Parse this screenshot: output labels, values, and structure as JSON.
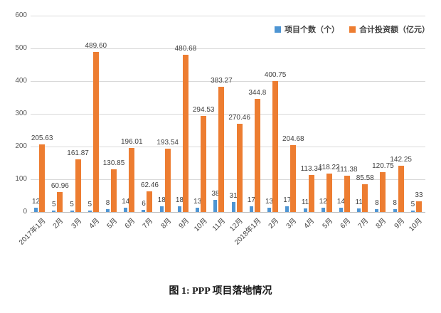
{
  "figure": {
    "caption": "图 1: PPP 项目落地情况"
  },
  "legend": {
    "projects_label": "项目个数（个）",
    "investment_label": "合计投资额（亿元）"
  },
  "colors": {
    "projects": "#4E95D3",
    "investment": "#ED7D31",
    "value_label": "#404040",
    "axis_label": "#595959",
    "x_label": "#404040",
    "gridline": "#D9D9D9",
    "zero_line": "#BFBFBF"
  },
  "chart_data": {
    "type": "bar",
    "title": "图 1: PPP 项目落地情况",
    "categories": [
      "2017年1月",
      "2月",
      "3月",
      "4月",
      "5月",
      "6月",
      "7月",
      "8月",
      "9月",
      "10月",
      "11月",
      "12月",
      "2018年1月",
      "2月",
      "3月",
      "4月",
      "5月",
      "6月",
      "7月",
      "8月",
      "9月",
      "10月"
    ],
    "series": [
      {
        "name": "项目个数（个）",
        "color": "#4E95D3",
        "values": [
          12,
          5,
          5,
          5,
          8,
          14,
          6,
          18,
          18,
          13,
          38,
          31,
          17,
          13,
          17,
          11,
          12,
          14,
          11,
          8,
          8,
          5
        ],
        "value_labels": [
          "12",
          "5",
          "5",
          "5",
          "8",
          "14",
          "6",
          "18",
          "18",
          "13",
          "38",
          "31",
          "17",
          "13",
          "17",
          "11",
          "12",
          "14",
          "11",
          "8",
          "8",
          "5"
        ]
      },
      {
        "name": "合计投资额（亿元）",
        "color": "#ED7D31",
        "values": [
          205.63,
          60.96,
          161.87,
          489.6,
          130.85,
          196.01,
          62.46,
          193.54,
          480.68,
          294.53,
          383.27,
          270.46,
          344.8,
          400.75,
          204.68,
          113.34,
          118.22,
          111.38,
          85.58,
          120.75,
          142.25,
          33
        ],
        "value_labels": [
          "205.63",
          "60.96",
          "161.87",
          "489.60",
          "130.85",
          "196.01",
          "62.46",
          "193.54",
          "480.68",
          "294.53",
          "383.27",
          "270.46",
          "344.8",
          "400.75",
          "204.68",
          "113.34",
          "118.22",
          "111.38",
          "85.58",
          "120.75",
          "142.25",
          "33"
        ]
      }
    ],
    "xlabel": "",
    "ylabel": "",
    "ylim": [
      0,
      600
    ],
    "yticks": [
      0,
      100,
      200,
      300,
      400,
      500,
      600
    ],
    "grid": true,
    "legend_position": "top-right"
  }
}
